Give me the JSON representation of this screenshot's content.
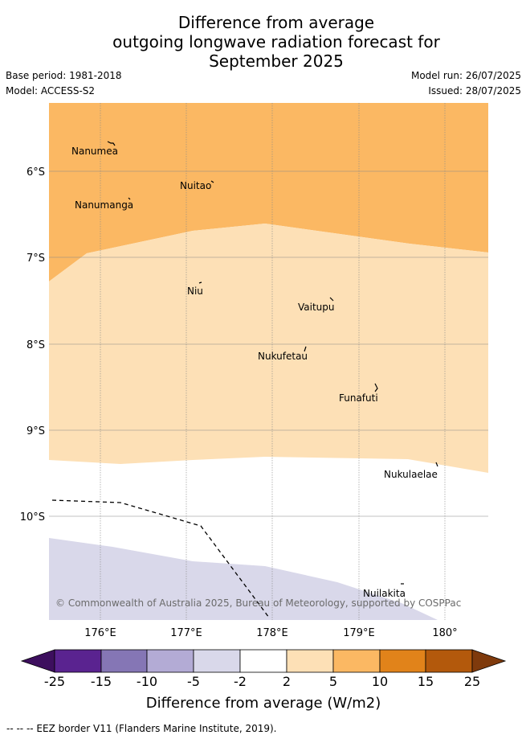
{
  "title": {
    "line1": "Difference from average",
    "line2": "outgoing longwave radiation forecast for",
    "line3": "September 2025"
  },
  "meta": {
    "base_period": "Base period: 1981-2018",
    "model": "Model: ACCESS-S2",
    "model_run": "Model run: 26/07/2025",
    "issued": "Issued: 28/07/2025"
  },
  "map": {
    "lat_labels": [
      "6°S",
      "7°S",
      "8°S",
      "9°S",
      "10°S"
    ],
    "lon_labels": [
      "176°E",
      "177°E",
      "178°E",
      "179°E",
      "180°"
    ],
    "places": [
      "Nanumea",
      "Nuitao",
      "Nanumanga",
      "Niu",
      "Vaitupu",
      "Nukufetau",
      "Funafuti",
      "Nukulaelae",
      "Nuilakita"
    ],
    "copyright": "© Commonwealth of Australia 2025, Bureau of Meteorology, supported by COSPPac"
  },
  "colorbar": {
    "ticks": [
      "-25",
      "-15",
      "-10",
      "-5",
      "-2",
      "2",
      "5",
      "10",
      "15",
      "25"
    ],
    "colors": [
      "#3d0f5e",
      "#5a2390",
      "#8576b5",
      "#b3abd5",
      "#d9d8ea",
      "#ffffff",
      "#fde0b6",
      "#fbb863",
      "#e1831a",
      "#b3590c",
      "#7f3a0c"
    ],
    "label": "Difference from average (W/m2)"
  },
  "footnote": "-- -- -- EEZ border V11 (Flanders Marine Institute, 2019)."
}
